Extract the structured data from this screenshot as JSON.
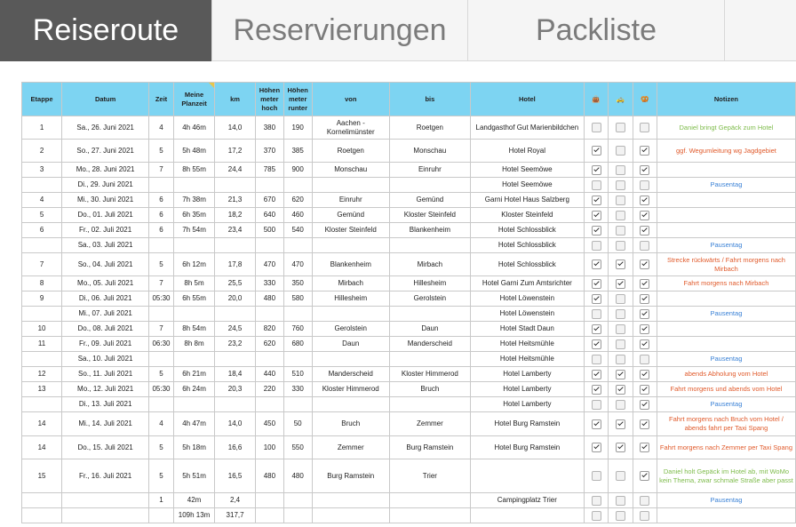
{
  "tabs": [
    "Reiseroute",
    "Reservierungen",
    "Packliste",
    ""
  ],
  "headers": {
    "etappe": "Etappe",
    "datum": "Datum",
    "zeit": "Zeit",
    "planzeit": "Meine Planzeit",
    "km": "km",
    "hoch": "Höhen meter hoch",
    "runter": "Höhen meter runter",
    "von": "von",
    "bis": "bis",
    "hotel": "Hotel",
    "notizen": "Notizen",
    "icon1": "👜",
    "icon2": "🚕",
    "icon3": "🥨"
  },
  "colors": {
    "active_tab": "#595959",
    "header_bg": "#7dd4f2",
    "green": "#7dbb4a",
    "red": "#e05a2b",
    "blue": "#3b82d6"
  },
  "rows": [
    {
      "etappe": "1",
      "datum": "Sa., 26. Juni 2021",
      "zeit": "4",
      "plan": "4h 46m",
      "km": "14,0",
      "hoch": "380",
      "runter": "190",
      "von": "Aachen - Kornelimünster",
      "bis": "Roetgen",
      "hotel": "Landgasthof Gut Marienbildchen",
      "c": [
        false,
        false,
        false
      ],
      "note": "Daniel bringt Gepäck zum Hotel",
      "nc": "green",
      "h": 26
    },
    {
      "etappe": "2",
      "datum": "So., 27. Juni 2021",
      "zeit": "5",
      "plan": "5h 48m",
      "km": "17,2",
      "hoch": "370",
      "runter": "385",
      "von": "Roetgen",
      "bis": "Monschau",
      "hotel": "Hotel Royal",
      "c": [
        true,
        false,
        true
      ],
      "note": "ggf. Wegumleitung wg Jagdgebiet",
      "nc": "red",
      "h": 26
    },
    {
      "etappe": "3",
      "datum": "Mo., 28. Juni 2021",
      "zeit": "7",
      "plan": "8h 55m",
      "km": "24,4",
      "hoch": "785",
      "runter": "900",
      "von": "Monschau",
      "bis": "Einruhr",
      "hotel": "Hotel Seemöwe",
      "c": [
        true,
        false,
        true
      ],
      "note": "",
      "nc": "",
      "h": 17
    },
    {
      "etappe": "",
      "datum": "Di., 29. Juni 2021",
      "zeit": "",
      "plan": "",
      "km": "",
      "hoch": "",
      "runter": "",
      "von": "",
      "bis": "",
      "hotel": "Hotel Seemöwe",
      "c": [
        false,
        false,
        false
      ],
      "note": "Pausentag",
      "nc": "blue",
      "h": 17
    },
    {
      "etappe": "4",
      "datum": "Mi., 30. Juni 2021",
      "zeit": "6",
      "plan": "7h 38m",
      "km": "21,3",
      "hoch": "670",
      "runter": "620",
      "von": "Einruhr",
      "bis": "Gemünd",
      "hotel": "Garni Hotel Haus Salzberg",
      "c": [
        true,
        false,
        true
      ],
      "note": "",
      "nc": "",
      "h": 17
    },
    {
      "etappe": "5",
      "datum": "Do., 01. Juli 2021",
      "zeit": "6",
      "plan": "6h 35m",
      "km": "18,2",
      "hoch": "640",
      "runter": "460",
      "von": "Gemünd",
      "bis": "Kloster Steinfeld",
      "hotel": "Kloster Steinfeld",
      "c": [
        true,
        false,
        true
      ],
      "note": "",
      "nc": "",
      "h": 17
    },
    {
      "etappe": "6",
      "datum": "Fr., 02. Juli 2021",
      "zeit": "6",
      "plan": "7h 54m",
      "km": "23,4",
      "hoch": "500",
      "runter": "540",
      "von": "Kloster Steinfeld",
      "bis": "Blankenheim",
      "hotel": "Hotel Schlossblick",
      "c": [
        true,
        false,
        true
      ],
      "note": "",
      "nc": "",
      "h": 17
    },
    {
      "etappe": "",
      "datum": "Sa., 03. Juli 2021",
      "zeit": "",
      "plan": "",
      "km": "",
      "hoch": "",
      "runter": "",
      "von": "",
      "bis": "",
      "hotel": "Hotel Schlossblick",
      "c": [
        false,
        false,
        false
      ],
      "note": "Pausentag",
      "nc": "blue",
      "h": 17
    },
    {
      "etappe": "7",
      "datum": "So., 04. Juli 2021",
      "zeit": "5",
      "plan": "6h 12m",
      "km": "17,8",
      "hoch": "470",
      "runter": "470",
      "von": "Blankenheim",
      "bis": "Mirbach",
      "hotel": "Hotel Schlossblick",
      "c": [
        true,
        true,
        true
      ],
      "note": "Strecke rückwärts / Fahrt morgens nach Mirbach",
      "nc": "red",
      "h": 26
    },
    {
      "etappe": "8",
      "datum": "Mo., 05. Juli 2021",
      "zeit": "7",
      "plan": "8h 5m",
      "km": "25,5",
      "hoch": "330",
      "runter": "350",
      "von": "Mirbach",
      "bis": "Hillesheim",
      "hotel": "Hotel Garni Zum Amtsrichter",
      "c": [
        true,
        true,
        true
      ],
      "note": "Fahrt morgens nach Mirbach",
      "nc": "red",
      "h": 17
    },
    {
      "etappe": "9",
      "datum": "Di., 06. Juli 2021",
      "zeit": "05:30",
      "plan": "6h 55m",
      "km": "20,0",
      "hoch": "480",
      "runter": "580",
      "von": "Hillesheim",
      "bis": "Gerolstein",
      "hotel": "Hotel Löwenstein",
      "c": [
        true,
        false,
        true
      ],
      "note": "",
      "nc": "",
      "h": 17
    },
    {
      "etappe": "",
      "datum": "Mi., 07. Juli 2021",
      "zeit": "",
      "plan": "",
      "km": "",
      "hoch": "",
      "runter": "",
      "von": "",
      "bis": "",
      "hotel": "Hotel Löwenstein",
      "c": [
        false,
        false,
        true
      ],
      "note": "Pausentag",
      "nc": "blue",
      "h": 17
    },
    {
      "etappe": "10",
      "datum": "Do., 08. Juli 2021",
      "zeit": "7",
      "plan": "8h 54m",
      "km": "24,5",
      "hoch": "820",
      "runter": "760",
      "von": "Gerolstein",
      "bis": "Daun",
      "hotel": "Hotel Stadt Daun",
      "c": [
        true,
        false,
        true
      ],
      "note": "",
      "nc": "",
      "h": 17
    },
    {
      "etappe": "11",
      "datum": "Fr., 09. Juli 2021",
      "zeit": "06:30",
      "plan": "8h 8m",
      "km": "23,2",
      "hoch": "620",
      "runter": "680",
      "von": "Daun",
      "bis": "Manderscheid",
      "hotel": "Hotel Heitsmühle",
      "c": [
        true,
        false,
        true
      ],
      "note": "",
      "nc": "",
      "h": 17
    },
    {
      "etappe": "",
      "datum": "Sa., 10. Juli 2021",
      "zeit": "",
      "plan": "",
      "km": "",
      "hoch": "",
      "runter": "",
      "von": "",
      "bis": "",
      "hotel": "Hotel Heitsmühle",
      "c": [
        false,
        false,
        false
      ],
      "note": "Pausentag",
      "nc": "blue",
      "h": 17
    },
    {
      "etappe": "12",
      "datum": "So., 11. Juli 2021",
      "zeit": "5",
      "plan": "6h 21m",
      "km": "18,4",
      "hoch": "440",
      "runter": "510",
      "von": "Manderscheid",
      "bis": "Kloster Himmerod",
      "hotel": "Hotel Lamberty",
      "c": [
        true,
        true,
        true
      ],
      "note": "abends Abholung vom Hotel",
      "nc": "red",
      "h": 17
    },
    {
      "etappe": "13",
      "datum": "Mo., 12. Juli 2021",
      "zeit": "05:30",
      "plan": "6h 24m",
      "km": "20,3",
      "hoch": "220",
      "runter": "330",
      "von": "Kloster Himmerod",
      "bis": "Bruch",
      "hotel": "Hotel Lamberty",
      "c": [
        true,
        true,
        true
      ],
      "note": "Fahrt morgens und abends vom Hotel",
      "nc": "red",
      "h": 17
    },
    {
      "etappe": "",
      "datum": "Di., 13. Juli 2021",
      "zeit": "",
      "plan": "",
      "km": "",
      "hoch": "",
      "runter": "",
      "von": "",
      "bis": "",
      "hotel": "Hotel Lamberty",
      "c": [
        false,
        false,
        true
      ],
      "note": "Pausentag",
      "nc": "blue",
      "h": 17
    },
    {
      "etappe": "14",
      "datum": "Mi., 14. Juli 2021",
      "zeit": "4",
      "plan": "4h 47m",
      "km": "14,0",
      "hoch": "450",
      "runter": "50",
      "von": "Bruch",
      "bis": "Zemmer",
      "hotel": "Hotel Burg Ramstein",
      "c": [
        true,
        true,
        true
      ],
      "note": "Fahrt morgens nach Bruch vom Hotel / abends fahrt per Taxi Spang",
      "nc": "red",
      "h": 27
    },
    {
      "etappe": "14",
      "datum": "Do., 15. Juli 2021",
      "zeit": "5",
      "plan": "5h 18m",
      "km": "16,6",
      "hoch": "100",
      "runter": "550",
      "von": "Zemmer",
      "bis": "Burg Ramstein",
      "hotel": "Hotel Burg Ramstein",
      "c": [
        true,
        true,
        true
      ],
      "note": "Fahrt morgens nach Zemmer per Taxi Spang",
      "nc": "red",
      "h": 26
    },
    {
      "etappe": "15",
      "datum": "Fr., 16. Juli 2021",
      "zeit": "5",
      "plan": "5h 51m",
      "km": "16,5",
      "hoch": "480",
      "runter": "480",
      "von": "Burg Ramstein",
      "bis": "Trier",
      "hotel": "",
      "c": [
        false,
        false,
        true
      ],
      "note": "Daniel holt Gepäck im Hotel ab, mit WoMo kein Thema, zwar schmale Straße aber passt",
      "nc": "green",
      "h": 38
    },
    {
      "etappe": "",
      "datum": "",
      "zeit": "1",
      "plan": "42m",
      "km": "2,4",
      "hoch": "",
      "runter": "",
      "von": "",
      "bis": "",
      "hotel": "Campingplatz Trier",
      "c": [
        false,
        false,
        false
      ],
      "note": "Pausentag",
      "nc": "blue",
      "h": 17
    },
    {
      "etappe": "",
      "datum": "",
      "zeit": "",
      "plan": "109h 13m",
      "km": "317,7",
      "hoch": "",
      "runter": "",
      "von": "",
      "bis": "",
      "hotel": "",
      "c": [
        false,
        false,
        false
      ],
      "note": "",
      "nc": "",
      "h": 17
    }
  ]
}
